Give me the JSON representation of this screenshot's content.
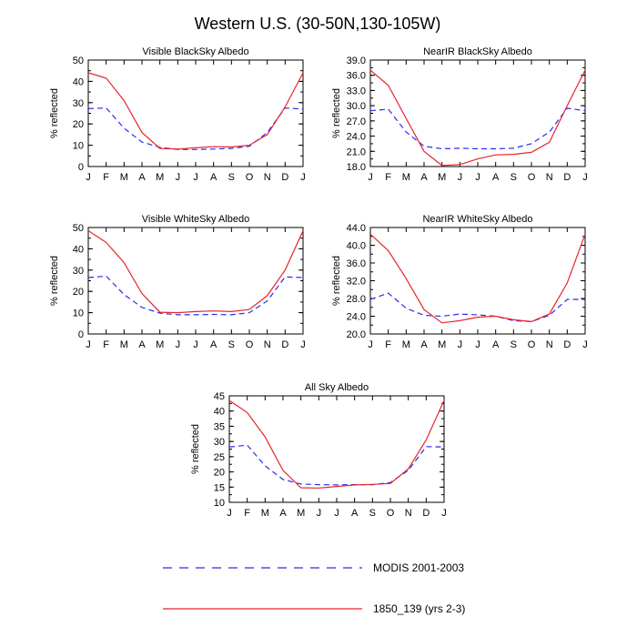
{
  "figure": {
    "title": "Western U.S. (30-50N,130-105W)"
  },
  "colors": {
    "modis": "#2a2af0",
    "model": "#e8242c"
  },
  "chart_data": [
    {
      "type": "line",
      "title": "Visible BlackSky Albedo",
      "xlabel": "",
      "ylabel": "% reflected",
      "categories": [
        "J",
        "F",
        "M",
        "A",
        "M",
        "J",
        "J",
        "A",
        "S",
        "O",
        "N",
        "D",
        "J"
      ],
      "ylim": [
        0,
        50
      ],
      "yticks": [
        "0",
        "10",
        "20",
        "30",
        "40",
        "50"
      ],
      "series": [
        {
          "name": "MODIS 2001-2003",
          "style": "dashed",
          "values": [
            27.2,
            27.5,
            18.0,
            11.5,
            9.0,
            8.0,
            8.0,
            8.2,
            8.5,
            9.5,
            16.0,
            27.5,
            27.0
          ]
        },
        {
          "name": "1850_139 (yrs 2-3)",
          "style": "solid",
          "values": [
            44.0,
            41.5,
            31.0,
            16.0,
            8.5,
            8.2,
            8.8,
            9.3,
            9.2,
            10.0,
            15.0,
            28.0,
            44.0
          ]
        }
      ]
    },
    {
      "type": "line",
      "title": "NearIR BlackSky Albedo",
      "xlabel": "",
      "ylabel": "% reflected",
      "categories": [
        "J",
        "F",
        "M",
        "A",
        "M",
        "J",
        "J",
        "A",
        "S",
        "O",
        "N",
        "D",
        "J"
      ],
      "ylim": [
        18,
        39
      ],
      "yticks": [
        "18.0",
        "21.0",
        "24.0",
        "27.0",
        "30.0",
        "33.0",
        "36.0",
        "39.0"
      ],
      "series": [
        {
          "name": "MODIS 2001-2003",
          "style": "dashed",
          "values": [
            29.0,
            29.3,
            24.8,
            22.0,
            21.5,
            21.6,
            21.5,
            21.5,
            21.6,
            22.5,
            24.8,
            29.5,
            29.0
          ]
        },
        {
          "name": "1850_139 (yrs 2-3)",
          "style": "solid",
          "values": [
            37.0,
            34.0,
            27.5,
            21.0,
            18.2,
            18.4,
            19.5,
            20.3,
            20.4,
            20.8,
            22.8,
            30.0,
            37.0
          ]
        }
      ]
    },
    {
      "type": "line",
      "title": "Visible WhiteSky Albedo",
      "xlabel": "",
      "ylabel": "% reflected",
      "categories": [
        "J",
        "F",
        "M",
        "A",
        "M",
        "J",
        "J",
        "A",
        "S",
        "O",
        "N",
        "D",
        "J"
      ],
      "ylim": [
        0,
        50
      ],
      "yticks": [
        "0",
        "10",
        "20",
        "30",
        "40",
        "50"
      ],
      "series": [
        {
          "name": "MODIS 2001-2003",
          "style": "dashed",
          "values": [
            26.5,
            27.2,
            18.5,
            12.5,
            9.8,
            9.0,
            9.0,
            9.2,
            9.0,
            10.0,
            15.5,
            26.8,
            26.5
          ]
        },
        {
          "name": "1850_139 (yrs 2-3)",
          "style": "solid",
          "values": [
            48.5,
            43.0,
            33.5,
            19.0,
            10.2,
            10.0,
            10.5,
            10.8,
            10.5,
            11.5,
            18.0,
            30.0,
            48.5
          ]
        }
      ]
    },
    {
      "type": "line",
      "title": "NearIR WhiteSky Albedo",
      "xlabel": "",
      "ylabel": "% reflected",
      "categories": [
        "J",
        "F",
        "M",
        "A",
        "M",
        "J",
        "J",
        "A",
        "S",
        "O",
        "N",
        "D",
        "J"
      ],
      "ylim": [
        20,
        44
      ],
      "yticks": [
        "20.0",
        "24.0",
        "28.0",
        "32.0",
        "36.0",
        "40.0",
        "44.0"
      ],
      "series": [
        {
          "name": "MODIS 2001-2003",
          "style": "dashed",
          "values": [
            27.8,
            29.2,
            25.8,
            24.2,
            24.0,
            24.5,
            24.3,
            24.0,
            23.0,
            22.8,
            24.2,
            27.8,
            27.8
          ]
        },
        {
          "name": "1850_139 (yrs 2-3)",
          "style": "solid",
          "values": [
            42.5,
            38.8,
            32.5,
            25.5,
            22.5,
            23.0,
            23.8,
            24.0,
            23.2,
            22.8,
            24.5,
            31.5,
            42.5
          ]
        }
      ]
    },
    {
      "type": "line",
      "title": "All Sky Albedo",
      "xlabel": "",
      "ylabel": "% reflected",
      "categories": [
        "J",
        "F",
        "M",
        "A",
        "M",
        "J",
        "J",
        "A",
        "S",
        "O",
        "N",
        "D",
        "J"
      ],
      "ylim": [
        10,
        45
      ],
      "yticks": [
        "10",
        "15",
        "20",
        "25",
        "30",
        "35",
        "40",
        "45"
      ],
      "series": [
        {
          "name": "MODIS 2001-2003",
          "style": "dashed",
          "values": [
            28.2,
            28.8,
            22.0,
            17.5,
            16.0,
            15.8,
            15.7,
            15.8,
            15.8,
            16.5,
            20.5,
            28.3,
            28.2
          ]
        },
        {
          "name": "1850_139 (yrs 2-3)",
          "style": "solid",
          "values": [
            43.5,
            39.5,
            31.5,
            20.5,
            14.8,
            14.7,
            15.2,
            15.7,
            15.9,
            16.2,
            21.0,
            30.5,
            43.5
          ]
        }
      ]
    }
  ],
  "legend": {
    "items": [
      {
        "label": "MODIS 2001-2003",
        "style": "dashed"
      },
      {
        "label": "1850_139 (yrs 2-3)",
        "style": "solid"
      }
    ]
  }
}
